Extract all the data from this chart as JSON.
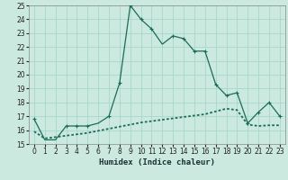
{
  "xlabel": "Humidex (Indice chaleur)",
  "xlim": [
    -0.5,
    23.5
  ],
  "ylim": [
    15,
    25
  ],
  "yticks": [
    15,
    16,
    17,
    18,
    19,
    20,
    21,
    22,
    23,
    24,
    25
  ],
  "xticks": [
    0,
    1,
    2,
    3,
    4,
    5,
    6,
    7,
    8,
    9,
    10,
    11,
    12,
    13,
    14,
    15,
    16,
    17,
    18,
    19,
    20,
    21,
    22,
    23
  ],
  "bg_color": "#cce9e0",
  "line_color": "#1a6b5a",
  "line1_x": [
    0,
    1,
    2,
    3,
    4,
    5,
    6,
    7,
    8,
    9,
    10,
    11,
    12,
    13,
    14,
    15,
    16,
    17,
    18,
    19,
    20,
    21,
    22,
    23
  ],
  "line1_y": [
    16.8,
    15.3,
    15.3,
    16.3,
    16.3,
    16.3,
    16.5,
    17.0,
    19.4,
    25.0,
    24.0,
    23.3,
    22.2,
    22.8,
    22.6,
    21.7,
    21.7,
    19.3,
    18.5,
    18.7,
    16.5,
    17.3,
    18.0,
    17.0
  ],
  "line2_x": [
    0,
    1,
    2,
    3,
    4,
    5,
    6,
    7,
    8,
    9,
    10,
    11,
    12,
    13,
    14,
    15,
    16,
    17,
    18,
    19,
    20,
    21,
    22,
    23
  ],
  "line2_y": [
    15.9,
    15.4,
    15.5,
    15.6,
    15.7,
    15.8,
    15.95,
    16.1,
    16.25,
    16.4,
    16.55,
    16.65,
    16.75,
    16.85,
    16.95,
    17.05,
    17.15,
    17.35,
    17.55,
    17.45,
    16.4,
    16.3,
    16.35,
    16.35
  ],
  "grid_color": "#a8d8cc",
  "tick_fontsize": 5.5,
  "xlabel_fontsize": 6.5
}
